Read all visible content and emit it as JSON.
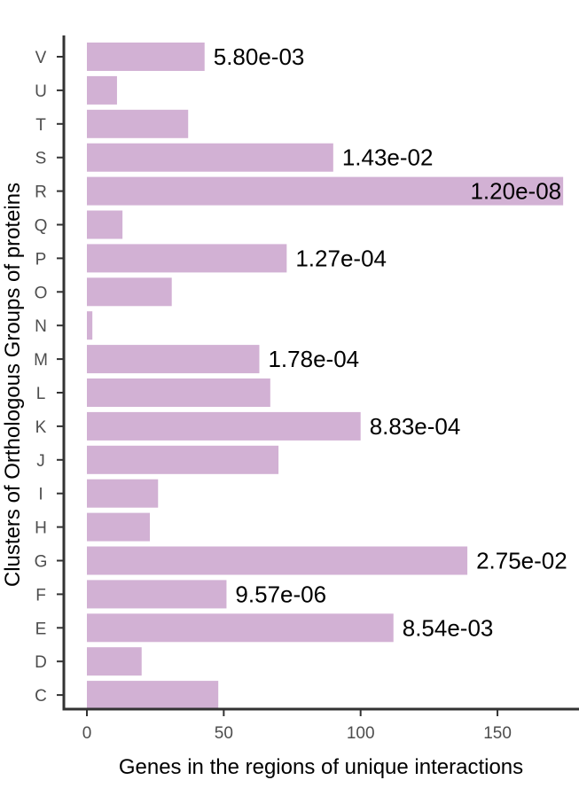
{
  "chart_data": {
    "type": "bar",
    "orientation": "horizontal",
    "categories": [
      "C",
      "D",
      "E",
      "F",
      "G",
      "H",
      "I",
      "J",
      "K",
      "L",
      "M",
      "N",
      "O",
      "P",
      "Q",
      "R",
      "S",
      "T",
      "U",
      "V"
    ],
    "values": [
      48,
      20,
      112,
      51,
      139,
      23,
      26,
      70,
      100,
      67,
      63,
      2,
      31,
      73,
      13,
      174,
      90,
      37,
      11,
      43
    ],
    "bar_labels": [
      "",
      "",
      "8.54e-03",
      "9.57e-06",
      "2.75e-02",
      "",
      "",
      "",
      "8.83e-04",
      "",
      "1.78e-04",
      "",
      "",
      "1.27e-04",
      "",
      "1.20e-08",
      "1.43e-02",
      "",
      "",
      "5.80e-03"
    ],
    "xlabel": "Genes in the regions of unique interactions",
    "ylabel": "Clusters of Orthologous Groups of proteins",
    "xlim": [
      0,
      175
    ],
    "xticks": [
      0,
      50,
      100,
      150
    ],
    "bar_color": "#d2b1d4",
    "grid": false
  }
}
